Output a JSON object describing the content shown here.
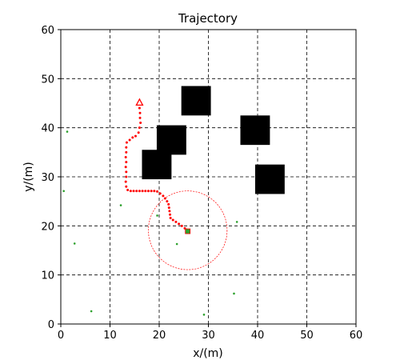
{
  "chart_data": {
    "type": "scatter",
    "title": "Trajectory",
    "xlabel": "x/(m)",
    "ylabel": "y/(m)",
    "xlim": [
      0,
      60
    ],
    "ylim": [
      0,
      60
    ],
    "xticks": [
      0,
      10,
      20,
      30,
      40,
      50,
      60
    ],
    "yticks": [
      0,
      10,
      20,
      30,
      40,
      50,
      60
    ],
    "grid": true,
    "grid_style": "dashed",
    "colors": {
      "trajectory": "#ff0000",
      "obstacle": "#000000",
      "scatter_points": "#2ca02c",
      "circle": "#ff0000"
    },
    "obstacles": [
      {
        "x_min": 24.5,
        "x_max": 30.5,
        "y_min": 42.5,
        "y_max": 48.5
      },
      {
        "x_min": 19.5,
        "x_max": 25.5,
        "y_min": 34.5,
        "y_max": 40.5
      },
      {
        "x_min": 16.5,
        "x_max": 22.5,
        "y_min": 29.5,
        "y_max": 35.5
      },
      {
        "x_min": 36.5,
        "x_max": 42.5,
        "y_min": 36.5,
        "y_max": 42.5
      },
      {
        "x_min": 39.5,
        "x_max": 45.5,
        "y_min": 26.5,
        "y_max": 32.5
      }
    ],
    "scatter_points": [
      [
        1.3,
        39.2
      ],
      [
        0.6,
        27.1
      ],
      [
        12.2,
        24.2
      ],
      [
        19.6,
        22.1
      ],
      [
        2.8,
        16.4
      ],
      [
        23.6,
        16.3
      ],
      [
        35.8,
        20.8
      ],
      [
        6.2,
        2.6
      ],
      [
        35.2,
        6.2
      ],
      [
        29.1,
        1.9
      ]
    ],
    "circle": {
      "cx": 25.8,
      "cy": 19.1,
      "r": 8
    },
    "goal_marker": {
      "x": 25.8,
      "y": 18.9,
      "color": "#2ca02c",
      "edge": "#ff0000"
    },
    "start_marker": {
      "x": 16.0,
      "y": 45.1,
      "shape": "triangle",
      "color": "#ff0000"
    },
    "trajectory": [
      [
        16.0,
        44.0
      ],
      [
        16.1,
        43.0
      ],
      [
        16.1,
        42.0
      ],
      [
        16.2,
        41.0
      ],
      [
        16.0,
        40.0
      ],
      [
        15.8,
        39.0
      ],
      [
        15.2,
        38.3
      ],
      [
        14.6,
        38.0
      ],
      [
        14.0,
        37.5
      ],
      [
        13.4,
        37.0
      ],
      [
        13.3,
        36.0
      ],
      [
        13.3,
        35.0
      ],
      [
        13.2,
        34.0
      ],
      [
        13.3,
        33.0
      ],
      [
        13.2,
        32.0
      ],
      [
        13.3,
        31.0
      ],
      [
        13.3,
        30.0
      ],
      [
        13.2,
        29.0
      ],
      [
        13.3,
        28.0
      ],
      [
        13.6,
        27.3
      ],
      [
        14.2,
        27.1
      ],
      [
        14.8,
        27.1
      ],
      [
        15.4,
        27.1
      ],
      [
        16.0,
        27.1
      ],
      [
        16.6,
        27.1
      ],
      [
        17.2,
        27.1
      ],
      [
        17.8,
        27.1
      ],
      [
        18.4,
        27.1
      ],
      [
        19.0,
        27.1
      ],
      [
        19.6,
        27.0
      ],
      [
        20.2,
        26.6
      ],
      [
        20.8,
        26.1
      ],
      [
        21.2,
        25.6
      ],
      [
        21.6,
        25.0
      ],
      [
        21.9,
        24.4
      ],
      [
        22.0,
        23.7
      ],
      [
        22.1,
        23.0
      ],
      [
        22.2,
        22.3
      ],
      [
        22.3,
        21.6
      ],
      [
        22.8,
        21.2
      ],
      [
        23.4,
        20.8
      ],
      [
        24.0,
        20.4
      ],
      [
        24.6,
        20.0
      ],
      [
        25.2,
        19.5
      ],
      [
        25.6,
        19.2
      ]
    ]
  }
}
